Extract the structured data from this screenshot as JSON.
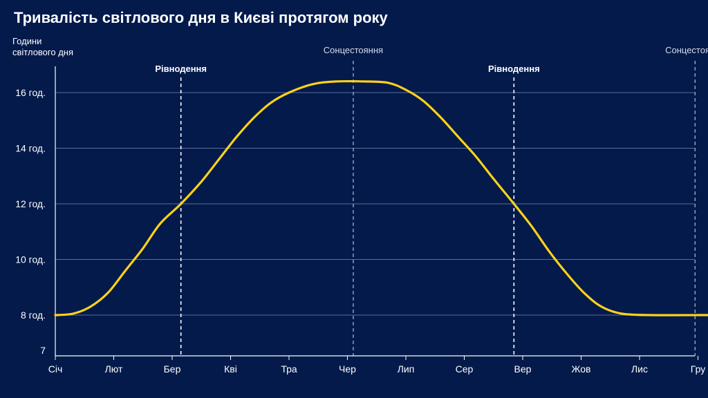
{
  "chart_data": {
    "type": "line",
    "title": "Тривалість світлового дня в Києві протягом року",
    "ylabel_line1": "Години",
    "ylabel_line2": "світлового дня",
    "xlabel": "",
    "categories": [
      "Січ",
      "Лют",
      "Бер",
      "Кві",
      "Тра",
      "Чер",
      "Лип",
      "Сер",
      "Вер",
      "Жов",
      "Лис",
      "Гру"
    ],
    "ylim": [
      7,
      17
    ],
    "yticks": [
      {
        "value": 7,
        "label": "7"
      },
      {
        "value": 8,
        "label": "8 год."
      },
      {
        "value": 10,
        "label": "10 год."
      },
      {
        "value": 12,
        "label": "12 год."
      },
      {
        "value": 14,
        "label": "14 год."
      },
      {
        "value": 16,
        "label": "16 год."
      }
    ],
    "grid": true,
    "series": [
      {
        "color": "#ffd21a",
        "points": [
          {
            "x": 0.0,
            "y": 8.0
          },
          {
            "x": 0.3,
            "y": 8.05
          },
          {
            "x": 0.6,
            "y": 8.3
          },
          {
            "x": 0.9,
            "y": 8.8
          },
          {
            "x": 1.2,
            "y": 9.6
          },
          {
            "x": 1.5,
            "y": 10.4
          },
          {
            "x": 1.8,
            "y": 11.3
          },
          {
            "x": 2.15,
            "y": 12.0
          },
          {
            "x": 2.5,
            "y": 12.8
          },
          {
            "x": 2.8,
            "y": 13.6
          },
          {
            "x": 3.1,
            "y": 14.4
          },
          {
            "x": 3.4,
            "y": 15.1
          },
          {
            "x": 3.7,
            "y": 15.65
          },
          {
            "x": 4.0,
            "y": 16.0
          },
          {
            "x": 4.4,
            "y": 16.3
          },
          {
            "x": 4.8,
            "y": 16.4
          },
          {
            "x": 5.3,
            "y": 16.4
          },
          {
            "x": 5.7,
            "y": 16.35
          },
          {
            "x": 6.0,
            "y": 16.1
          },
          {
            "x": 6.3,
            "y": 15.7
          },
          {
            "x": 6.6,
            "y": 15.1
          },
          {
            "x": 6.9,
            "y": 14.4
          },
          {
            "x": 7.2,
            "y": 13.7
          },
          {
            "x": 7.5,
            "y": 12.9
          },
          {
            "x": 7.85,
            "y": 12.0
          },
          {
            "x": 8.15,
            "y": 11.2
          },
          {
            "x": 8.45,
            "y": 10.3
          },
          {
            "x": 8.75,
            "y": 9.5
          },
          {
            "x": 9.05,
            "y": 8.8
          },
          {
            "x": 9.35,
            "y": 8.3
          },
          {
            "x": 9.7,
            "y": 8.05
          },
          {
            "x": 10.2,
            "y": 8.0
          },
          {
            "x": 11.0,
            "y": 8.0
          },
          {
            "x": 11.25,
            "y": 8.0
          }
        ]
      }
    ],
    "annotations": [
      {
        "label": "Рівнодення",
        "x": 2.15,
        "style": "bold",
        "line_color": "#ffffff"
      },
      {
        "label": "Сонцестояння",
        "x": 5.1,
        "style": "light",
        "line_color": "#a9b0c8"
      },
      {
        "label": "Рівнодення",
        "x": 7.85,
        "style": "bold",
        "line_color": "#ffffff"
      },
      {
        "label": "Сонцестояння",
        "x": 10.95,
        "style": "light",
        "line_color": "#a9b0c8"
      }
    ],
    "colors": {
      "background": "#031a4b",
      "line": "#ffd21a",
      "grid": "#5d6d99",
      "axis": "#ffffff",
      "text": "#ffffff"
    }
  }
}
